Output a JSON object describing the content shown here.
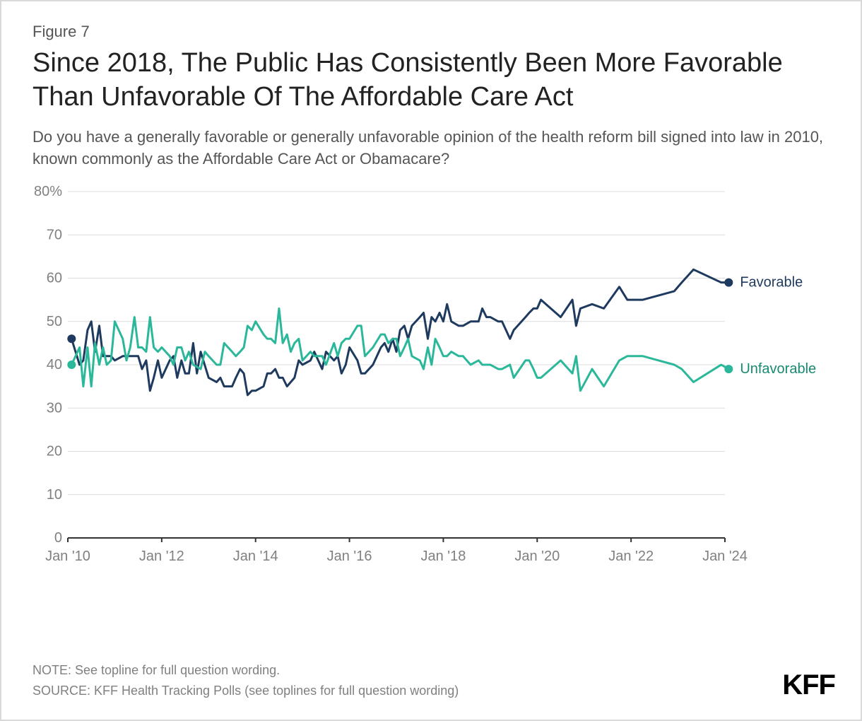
{
  "figure_number": "Figure 7",
  "title": "Since 2018, The Public Has Consistently Been More Favorable Than Unfavorable Of The Affordable Care Act",
  "subtitle": "Do you have a generally favorable or generally unfavorable opinion of the health reform bill signed into law in 2010, known commonly as the Affordable Care Act or Obamacare?",
  "note": "NOTE: See topline for full question wording.",
  "source": "SOURCE: KFF Health Tracking Polls (see toplines for full question wording)",
  "brand": "KFF",
  "chart": {
    "type": "line",
    "background_color": "#ffffff",
    "grid_color": "#dcdcdc",
    "axis_color": "#333333",
    "line_width": 3,
    "marker_radius": 6,
    "font_family": "sans-serif",
    "tick_fontsize": 20,
    "series_label_fontsize": 20,
    "y": {
      "min": 0,
      "max": 80,
      "ticks": [
        0,
        10,
        20,
        30,
        40,
        50,
        60,
        70,
        80
      ],
      "suffix_on_max": "%"
    },
    "x": {
      "min": 2010,
      "max": 2024,
      "ticks": [
        {
          "value": 2010,
          "label": "Jan '10"
        },
        {
          "value": 2012,
          "label": "Jan '12"
        },
        {
          "value": 2014,
          "label": "Jan '14"
        },
        {
          "value": 2016,
          "label": "Jan '16"
        },
        {
          "value": 2018,
          "label": "Jan '18"
        },
        {
          "value": 2020,
          "label": "Jan '20"
        },
        {
          "value": 2022,
          "label": "Jan '22"
        },
        {
          "value": 2024,
          "label": "Jan '24"
        }
      ]
    },
    "series": [
      {
        "name": "Favorable",
        "color": "#1f3a5f",
        "label_color": "#1f3a5f",
        "start_marker": true,
        "end_marker": true,
        "points": [
          [
            2010.08,
            46
          ],
          [
            2010.25,
            40
          ],
          [
            2010.33,
            41
          ],
          [
            2010.42,
            48
          ],
          [
            2010.5,
            50
          ],
          [
            2010.58,
            43
          ],
          [
            2010.67,
            49
          ],
          [
            2010.75,
            42
          ],
          [
            2010.83,
            42
          ],
          [
            2010.92,
            42
          ],
          [
            2011.0,
            41
          ],
          [
            2011.17,
            42
          ],
          [
            2011.33,
            42
          ],
          [
            2011.5,
            42
          ],
          [
            2011.58,
            39
          ],
          [
            2011.67,
            41
          ],
          [
            2011.75,
            34
          ],
          [
            2011.83,
            37
          ],
          [
            2011.92,
            41
          ],
          [
            2012.0,
            37
          ],
          [
            2012.17,
            41
          ],
          [
            2012.25,
            42
          ],
          [
            2012.33,
            37
          ],
          [
            2012.42,
            41
          ],
          [
            2012.5,
            38
          ],
          [
            2012.58,
            38
          ],
          [
            2012.67,
            45
          ],
          [
            2012.75,
            38
          ],
          [
            2012.83,
            43
          ],
          [
            2013.0,
            37
          ],
          [
            2013.17,
            36
          ],
          [
            2013.25,
            37
          ],
          [
            2013.33,
            35
          ],
          [
            2013.5,
            35
          ],
          [
            2013.58,
            37
          ],
          [
            2013.67,
            39
          ],
          [
            2013.75,
            38
          ],
          [
            2013.83,
            33
          ],
          [
            2013.92,
            34
          ],
          [
            2014.0,
            34
          ],
          [
            2014.17,
            35
          ],
          [
            2014.25,
            38
          ],
          [
            2014.33,
            38
          ],
          [
            2014.42,
            39
          ],
          [
            2014.5,
            37
          ],
          [
            2014.58,
            37
          ],
          [
            2014.67,
            35
          ],
          [
            2014.75,
            36
          ],
          [
            2014.83,
            37
          ],
          [
            2014.92,
            41
          ],
          [
            2015.0,
            40
          ],
          [
            2015.17,
            41
          ],
          [
            2015.25,
            43
          ],
          [
            2015.42,
            39
          ],
          [
            2015.5,
            43
          ],
          [
            2015.67,
            41
          ],
          [
            2015.75,
            42
          ],
          [
            2015.83,
            38
          ],
          [
            2015.92,
            40
          ],
          [
            2016.0,
            44
          ],
          [
            2016.17,
            41
          ],
          [
            2016.25,
            38
          ],
          [
            2016.33,
            38
          ],
          [
            2016.5,
            40
          ],
          [
            2016.67,
            44
          ],
          [
            2016.75,
            45
          ],
          [
            2016.83,
            43
          ],
          [
            2016.92,
            46
          ],
          [
            2017.0,
            43
          ],
          [
            2017.08,
            48
          ],
          [
            2017.17,
            49
          ],
          [
            2017.25,
            46
          ],
          [
            2017.33,
            49
          ],
          [
            2017.5,
            51
          ],
          [
            2017.58,
            52
          ],
          [
            2017.67,
            46
          ],
          [
            2017.75,
            51
          ],
          [
            2017.83,
            50
          ],
          [
            2017.92,
            52
          ],
          [
            2018.0,
            50
          ],
          [
            2018.08,
            54
          ],
          [
            2018.17,
            50
          ],
          [
            2018.33,
            49
          ],
          [
            2018.42,
            49
          ],
          [
            2018.58,
            50
          ],
          [
            2018.75,
            50
          ],
          [
            2018.83,
            53
          ],
          [
            2018.92,
            51
          ],
          [
            2019.0,
            51
          ],
          [
            2019.17,
            50
          ],
          [
            2019.25,
            50
          ],
          [
            2019.42,
            46
          ],
          [
            2019.5,
            48
          ],
          [
            2019.75,
            51
          ],
          [
            2019.83,
            52
          ],
          [
            2019.92,
            53
          ],
          [
            2020.0,
            53
          ],
          [
            2020.08,
            55
          ],
          [
            2020.5,
            51
          ],
          [
            2020.75,
            55
          ],
          [
            2020.83,
            49
          ],
          [
            2020.92,
            53
          ],
          [
            2021.17,
            54
          ],
          [
            2021.42,
            53
          ],
          [
            2021.75,
            58
          ],
          [
            2021.92,
            55
          ],
          [
            2022.25,
            55
          ],
          [
            2022.92,
            57
          ],
          [
            2023.08,
            59
          ],
          [
            2023.33,
            62
          ],
          [
            2023.92,
            59
          ],
          [
            2024.08,
            59
          ]
        ]
      },
      {
        "name": "Unfavorable",
        "color": "#2bb89a",
        "label_color": "#188a71",
        "start_marker": true,
        "end_marker": true,
        "points": [
          [
            2010.08,
            40
          ],
          [
            2010.25,
            44
          ],
          [
            2010.33,
            35
          ],
          [
            2010.42,
            44
          ],
          [
            2010.5,
            35
          ],
          [
            2010.58,
            45
          ],
          [
            2010.67,
            40
          ],
          [
            2010.75,
            44
          ],
          [
            2010.83,
            40
          ],
          [
            2010.92,
            41
          ],
          [
            2011.0,
            50
          ],
          [
            2011.17,
            46
          ],
          [
            2011.25,
            41
          ],
          [
            2011.33,
            44
          ],
          [
            2011.42,
            51
          ],
          [
            2011.5,
            44
          ],
          [
            2011.58,
            44
          ],
          [
            2011.67,
            43
          ],
          [
            2011.75,
            51
          ],
          [
            2011.83,
            44
          ],
          [
            2011.92,
            43
          ],
          [
            2012.0,
            44
          ],
          [
            2012.17,
            42
          ],
          [
            2012.25,
            40
          ],
          [
            2012.33,
            44
          ],
          [
            2012.42,
            44
          ],
          [
            2012.5,
            41
          ],
          [
            2012.58,
            43
          ],
          [
            2012.67,
            40
          ],
          [
            2012.83,
            39
          ],
          [
            2012.92,
            43
          ],
          [
            2013.0,
            42
          ],
          [
            2013.17,
            40
          ],
          [
            2013.25,
            40
          ],
          [
            2013.33,
            45
          ],
          [
            2013.5,
            43
          ],
          [
            2013.58,
            42
          ],
          [
            2013.67,
            43
          ],
          [
            2013.75,
            44
          ],
          [
            2013.83,
            49
          ],
          [
            2013.92,
            48
          ],
          [
            2014.0,
            50
          ],
          [
            2014.17,
            47
          ],
          [
            2014.25,
            46
          ],
          [
            2014.33,
            46
          ],
          [
            2014.42,
            45
          ],
          [
            2014.5,
            53
          ],
          [
            2014.58,
            45
          ],
          [
            2014.67,
            47
          ],
          [
            2014.75,
            43
          ],
          [
            2014.83,
            45
          ],
          [
            2014.92,
            46
          ],
          [
            2015.0,
            41
          ],
          [
            2015.17,
            43
          ],
          [
            2015.25,
            42
          ],
          [
            2015.42,
            42
          ],
          [
            2015.5,
            40
          ],
          [
            2015.67,
            45
          ],
          [
            2015.75,
            42
          ],
          [
            2015.83,
            45
          ],
          [
            2015.92,
            46
          ],
          [
            2016.0,
            46
          ],
          [
            2016.17,
            49
          ],
          [
            2016.25,
            49
          ],
          [
            2016.33,
            42
          ],
          [
            2016.5,
            44
          ],
          [
            2016.67,
            47
          ],
          [
            2016.75,
            47
          ],
          [
            2016.83,
            45
          ],
          [
            2016.92,
            46
          ],
          [
            2017.0,
            46
          ],
          [
            2017.08,
            42
          ],
          [
            2017.17,
            44
          ],
          [
            2017.25,
            46
          ],
          [
            2017.33,
            42
          ],
          [
            2017.5,
            41
          ],
          [
            2017.58,
            39
          ],
          [
            2017.67,
            44
          ],
          [
            2017.75,
            40
          ],
          [
            2017.83,
            46
          ],
          [
            2017.92,
            44
          ],
          [
            2018.0,
            42
          ],
          [
            2018.08,
            42
          ],
          [
            2018.17,
            43
          ],
          [
            2018.33,
            42
          ],
          [
            2018.42,
            42
          ],
          [
            2018.58,
            40
          ],
          [
            2018.75,
            41
          ],
          [
            2018.83,
            40
          ],
          [
            2018.92,
            40
          ],
          [
            2019.0,
            40
          ],
          [
            2019.17,
            39
          ],
          [
            2019.25,
            39
          ],
          [
            2019.42,
            40
          ],
          [
            2019.5,
            37
          ],
          [
            2019.75,
            41
          ],
          [
            2019.83,
            41
          ],
          [
            2019.92,
            39
          ],
          [
            2020.0,
            37
          ],
          [
            2020.08,
            37
          ],
          [
            2020.5,
            41
          ],
          [
            2020.75,
            38
          ],
          [
            2020.83,
            42
          ],
          [
            2020.92,
            34
          ],
          [
            2021.17,
            39
          ],
          [
            2021.42,
            35
          ],
          [
            2021.75,
            41
          ],
          [
            2021.92,
            42
          ],
          [
            2022.25,
            42
          ],
          [
            2022.92,
            40
          ],
          [
            2023.08,
            39
          ],
          [
            2023.33,
            36
          ],
          [
            2023.92,
            40
          ],
          [
            2024.08,
            39
          ]
        ]
      }
    ]
  }
}
